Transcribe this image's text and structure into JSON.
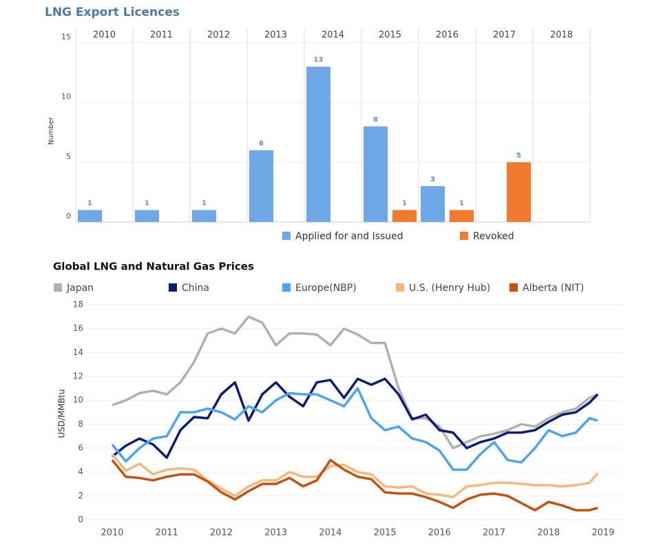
{
  "chart_data": [
    {
      "type": "bar",
      "title": "LNG Export Licences",
      "y_label": "Number",
      "categories": [
        "2010",
        "2011",
        "2012",
        "2013",
        "2014",
        "2015",
        "2016",
        "2017",
        "2018"
      ],
      "series": [
        {
          "name": "Applied for and Issued",
          "color": "#6ea8e6",
          "values": [
            1,
            1,
            1,
            6,
            13,
            8,
            3,
            null,
            null
          ]
        },
        {
          "name": "Revoked",
          "color": "#f07b30",
          "values": [
            null,
            null,
            null,
            null,
            null,
            1,
            1,
            5,
            null
          ]
        }
      ],
      "ylim": [
        0,
        15
      ],
      "yticks": [
        0,
        5,
        10,
        15
      ],
      "grid": true
    },
    {
      "type": "line",
      "title": "Global LNG and Natural Gas Prices",
      "y_label": "USD/MMBtu",
      "x": [
        2010,
        2010.25,
        2010.5,
        2010.75,
        2011,
        2011.25,
        2011.5,
        2011.75,
        2012,
        2012.25,
        2012.5,
        2012.75,
        2013,
        2013.25,
        2013.5,
        2013.75,
        2014,
        2014.25,
        2014.5,
        2014.75,
        2015,
        2015.25,
        2015.5,
        2015.75,
        2016,
        2016.25,
        2016.5,
        2016.75,
        2017,
        2017.25,
        2017.5,
        2017.75,
        2018,
        2018.25,
        2018.5,
        2018.75,
        2018.9
      ],
      "series": [
        {
          "name": "Japan",
          "color": "#b0b0b0",
          "values": [
            9.6,
            10.0,
            10.6,
            10.8,
            10.5,
            11.5,
            13.2,
            15.6,
            16.0,
            15.6,
            17.0,
            16.5,
            14.6,
            15.6,
            15.6,
            15.5,
            14.6,
            16.0,
            15.5,
            14.8,
            14.8,
            11.0,
            8.5,
            8.5,
            7.8,
            6.0,
            6.5,
            7.0,
            7.2,
            7.5,
            8.0,
            7.8,
            8.5,
            9.0,
            9.3,
            10.2,
            10.5
          ]
        },
        {
          "name": "China",
          "color": "#0c1a78",
          "values": [
            5.3,
            6.2,
            6.8,
            6.3,
            5.2,
            7.5,
            8.6,
            8.5,
            10.5,
            11.5,
            8.3,
            10.5,
            11.5,
            10.3,
            9.5,
            11.5,
            11.7,
            10.2,
            11.8,
            11.3,
            11.8,
            10.5,
            8.4,
            8.8,
            7.5,
            7.3,
            6.0,
            6.5,
            6.8,
            7.3,
            7.3,
            7.5,
            8.2,
            8.8,
            9.0,
            9.8,
            10.5
          ]
        },
        {
          "name": "Europe(NBP)",
          "color": "#4ea3f0",
          "values": [
            6.3,
            4.9,
            6.0,
            6.8,
            7.0,
            9.0,
            9.0,
            9.3,
            9.0,
            8.4,
            9.5,
            9.0,
            10.0,
            10.6,
            10.5,
            10.5,
            10.0,
            9.5,
            11.0,
            8.5,
            7.5,
            7.8,
            6.8,
            6.5,
            5.8,
            4.2,
            4.2,
            5.5,
            6.5,
            5.0,
            4.8,
            6.0,
            7.5,
            7.0,
            7.3,
            8.5,
            8.3
          ]
        },
        {
          "name": "U.S. (Henry Hub)",
          "color": "#f5b87c",
          "values": [
            5.5,
            4.1,
            4.7,
            3.8,
            4.2,
            4.3,
            4.2,
            3.3,
            2.6,
            2.0,
            2.8,
            3.3,
            3.3,
            4.0,
            3.6,
            3.6,
            4.5,
            4.6,
            4.0,
            3.8,
            2.8,
            2.7,
            2.8,
            2.2,
            2.1,
            1.9,
            2.8,
            2.9,
            3.1,
            3.1,
            3.0,
            2.9,
            2.9,
            2.8,
            2.9,
            3.1,
            3.9
          ]
        },
        {
          "name": "Alberta (NIT)",
          "color": "#c4520c",
          "values": [
            5.0,
            3.6,
            3.5,
            3.3,
            3.6,
            3.8,
            3.8,
            3.2,
            2.3,
            1.7,
            2.4,
            3.0,
            3.0,
            3.5,
            2.8,
            3.3,
            5.0,
            4.2,
            3.6,
            3.4,
            2.3,
            2.2,
            2.2,
            1.9,
            1.5,
            1.0,
            1.7,
            2.1,
            2.2,
            2.0,
            1.4,
            0.8,
            1.5,
            1.2,
            0.8,
            0.8,
            1.0
          ]
        }
      ],
      "xlim": [
        2010,
        2019
      ],
      "xticks": [
        2010,
        2011,
        2012,
        2013,
        2014,
        2015,
        2016,
        2017,
        2018,
        2019
      ],
      "ylim": [
        0,
        18
      ],
      "yticks": [
        0,
        2,
        4,
        6,
        8,
        10,
        12,
        14,
        16,
        18
      ],
      "grid": true
    }
  ]
}
